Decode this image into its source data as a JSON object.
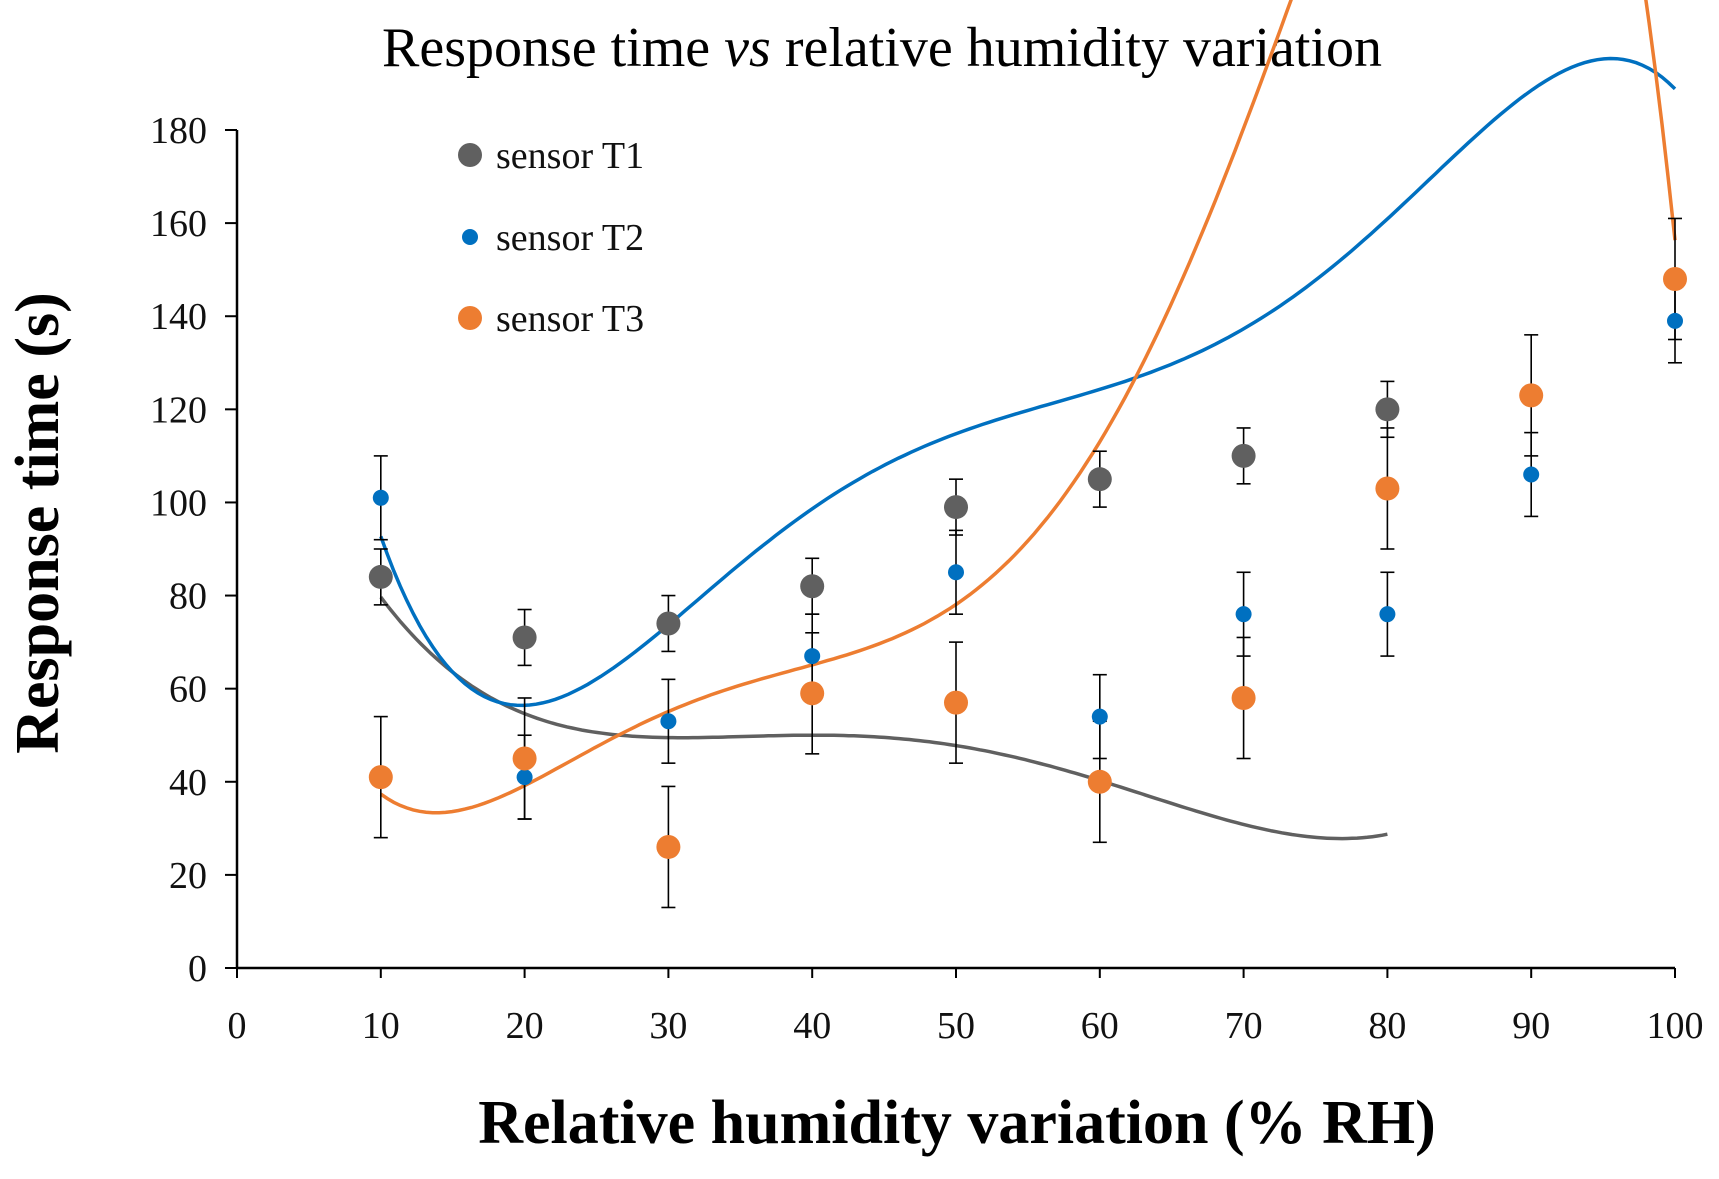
{
  "chart_data": {
    "type": "scatter",
    "title_parts": [
      {
        "text": "Response time ",
        "italic": false
      },
      {
        "text": "vs",
        "italic": true
      },
      {
        "text": " relative humidity variation",
        "italic": false
      }
    ],
    "xlabel": "Relative humidity variation (% RH)",
    "ylabel": "Response time (s)",
    "xlim": [
      0,
      100
    ],
    "ylim": [
      0,
      180
    ],
    "xticks": [
      0,
      10,
      20,
      30,
      40,
      50,
      60,
      70,
      80,
      90,
      100
    ],
    "yticks": [
      0,
      20,
      40,
      60,
      80,
      100,
      120,
      140,
      160,
      180
    ],
    "grid": false,
    "legend_position": "top-left",
    "series": [
      {
        "name": "sensor T1",
        "color": "#606060",
        "marker": "large",
        "x": [
          10,
          20,
          30,
          40,
          50,
          60,
          70,
          80
        ],
        "y": [
          84,
          71,
          74,
          82,
          99,
          105,
          110,
          120
        ],
        "err": [
          6,
          6,
          6,
          6,
          6,
          6,
          6,
          6
        ],
        "trend_coeffs": [
          144.82,
          -9.3375,
          0.32818,
          -0.00483,
          2.45e-05
        ]
      },
      {
        "name": "sensor T2",
        "color": "#0070C0",
        "marker": "small",
        "x": [
          10,
          20,
          30,
          40,
          50,
          60,
          70,
          80,
          90,
          100
        ],
        "y": [
          101,
          41,
          53,
          67,
          85,
          54,
          76,
          76,
          106,
          139
        ],
        "err": [
          9,
          9,
          9,
          9,
          9,
          9,
          9,
          9,
          9,
          9
        ],
        "trend_coeffs": [
          268.82,
          -28.7,
          1.36,
          -0.0276,
          0.000258,
          -9.01e-07
        ]
      },
      {
        "name": "sensor T3",
        "color": "#ED7D31",
        "marker": "large",
        "x": [
          10,
          20,
          30,
          40,
          50,
          60,
          70,
          80,
          90,
          100
        ],
        "y": [
          41,
          45,
          26,
          59,
          57,
          40,
          58,
          103,
          123,
          148
        ],
        "err": [
          13,
          13,
          13,
          13,
          13,
          13,
          13,
          13,
          13,
          13
        ],
        "trend_coeffs": [
          117.34,
          -15.91,
          1.044,
          -0.02867,
          0.000355,
          -1.564e-06
        ]
      }
    ]
  }
}
